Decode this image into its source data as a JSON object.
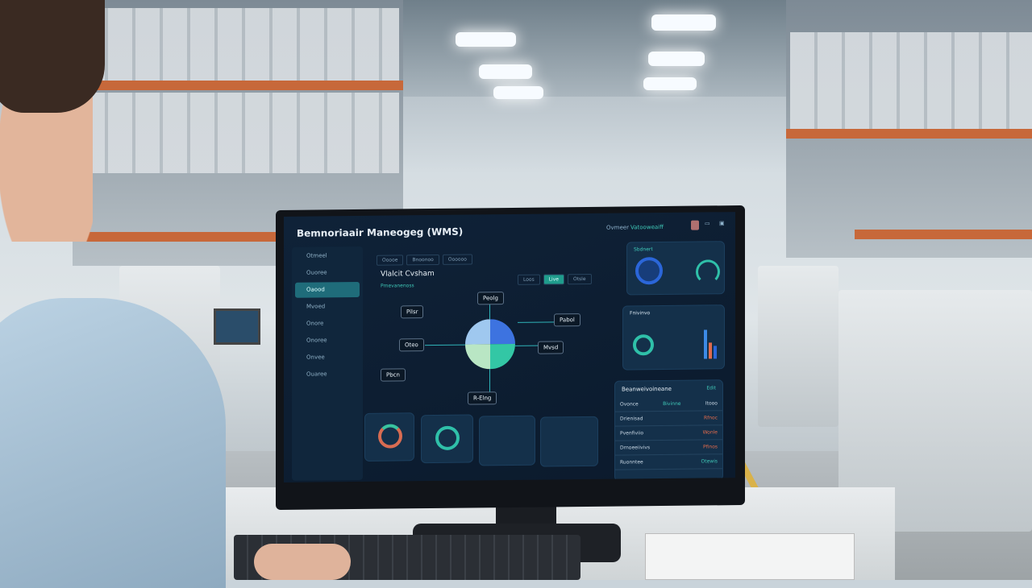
{
  "scene": "warehouse",
  "dashboard": {
    "title": "Bemnoriaair Maneogeg (WMS)",
    "header_right": [
      "Ovmeer",
      "Vatooweaiff"
    ],
    "tabs": [
      "Ooooe",
      "Bnoonoo",
      "Oooooo"
    ],
    "section_title": "Vlalcit Cvsham",
    "section_subtitle": "Pmevanenoss",
    "filters": [
      "Loos",
      "Live",
      "Otsle"
    ],
    "sidebar": [
      "Otmeel",
      "Ouoree",
      "Oaood",
      "Mvoed",
      "Onore",
      "Onoree",
      "Onvee",
      "Ouaree"
    ],
    "nodes": [
      "Peolg",
      "Pilsr",
      "Oteo",
      "Pabol",
      "Mvsd",
      "Pbcn",
      "R-Elng"
    ],
    "cards": {
      "gauge_title": "Sbdnert",
      "chart_title": "Fnivinvo",
      "table_title": "Beanweivoineane",
      "table_action": "Edit"
    },
    "table_rows": [
      {
        "label": "Ovonce",
        "status": "Bivinne",
        "value": "Itooo"
      },
      {
        "label": "Drienisad",
        "status": "",
        "value": "Rfnoc"
      },
      {
        "label": "Pvenfiviio",
        "status": "",
        "value": "Wonle"
      },
      {
        "label": "Drnoeeiivivs",
        "status": "",
        "value": "Pfinos"
      },
      {
        "label": "Ruonntee",
        "status": "",
        "value": "Otewis"
      }
    ],
    "pie_colors": [
      "#9fc8ef",
      "#3d73e0",
      "#b9e6c4",
      "#33c7a5"
    ]
  }
}
